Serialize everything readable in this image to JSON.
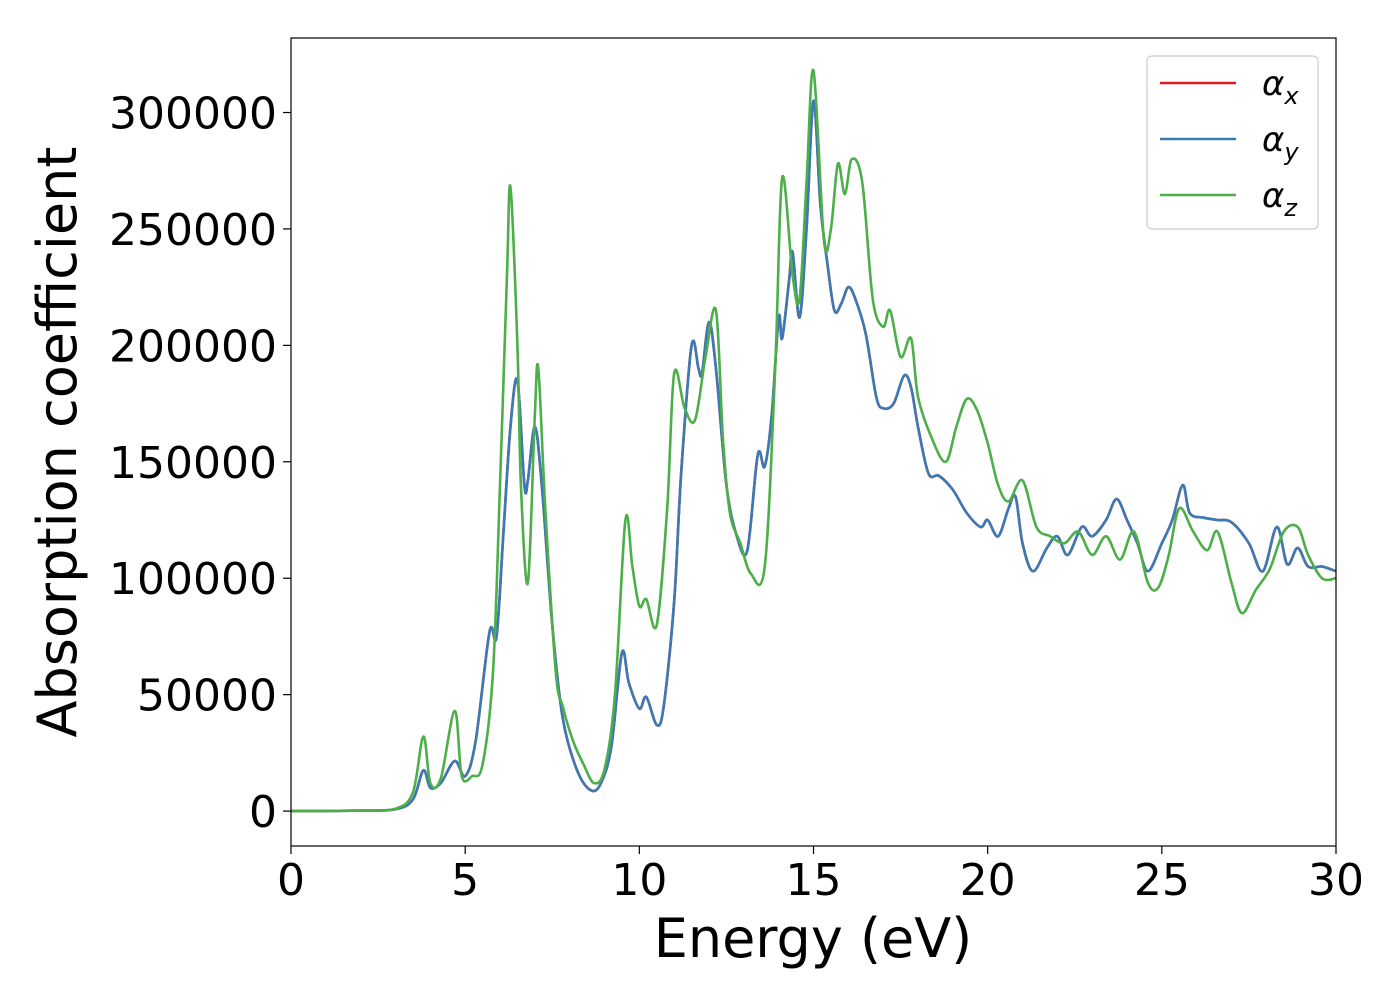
{
  "chart_data": {
    "type": "line",
    "title": "",
    "xlabel": "Energy (eV)",
    "ylabel": "Absorption coefficient",
    "xlim": [
      0,
      30
    ],
    "ylim": [
      -15000,
      332000
    ],
    "xticks": [
      0,
      5,
      10,
      15,
      20,
      25,
      30
    ],
    "yticks": [
      0,
      50000,
      100000,
      150000,
      200000,
      250000,
      300000
    ],
    "xtick_labels": [
      "0",
      "5",
      "10",
      "15",
      "20",
      "25",
      "30"
    ],
    "ytick_labels": [
      "0",
      "50000",
      "100000",
      "150000",
      "200000",
      "250000",
      "300000"
    ],
    "grid": false,
    "legend_position": "top-right",
    "series": [
      {
        "name": "αx",
        "legend_base": "α",
        "legend_sub": "x",
        "color": "#e41a1c",
        "points": [
          [
            0,
            0
          ],
          [
            2,
            200
          ],
          [
            3,
            800
          ],
          [
            3.5,
            5000
          ],
          [
            3.8,
            17500
          ],
          [
            4.0,
            10000
          ],
          [
            4.3,
            12000
          ],
          [
            4.7,
            21500
          ],
          [
            5.0,
            15000
          ],
          [
            5.3,
            30000
          ],
          [
            5.7,
            77000
          ],
          [
            5.9,
            75000
          ],
          [
            6.1,
            120000
          ],
          [
            6.3,
            165000
          ],
          [
            6.5,
            185000
          ],
          [
            6.7,
            140000
          ],
          [
            6.8,
            142000
          ],
          [
            7.0,
            165000
          ],
          [
            7.2,
            140000
          ],
          [
            7.5,
            80000
          ],
          [
            7.8,
            40000
          ],
          [
            8.2,
            18000
          ],
          [
            8.6,
            9000
          ],
          [
            8.9,
            12000
          ],
          [
            9.2,
            28000
          ],
          [
            9.5,
            68000
          ],
          [
            9.7,
            55000
          ],
          [
            10.0,
            44000
          ],
          [
            10.2,
            49000
          ],
          [
            10.5,
            37000
          ],
          [
            10.7,
            45000
          ],
          [
            11.0,
            90000
          ],
          [
            11.2,
            145000
          ],
          [
            11.5,
            200000
          ],
          [
            11.7,
            190000
          ],
          [
            11.8,
            188000
          ],
          [
            12.0,
            210000
          ],
          [
            12.2,
            190000
          ],
          [
            12.5,
            140000
          ],
          [
            12.8,
            118000
          ],
          [
            13.1,
            112000
          ],
          [
            13.4,
            153000
          ],
          [
            13.6,
            148000
          ],
          [
            13.8,
            170000
          ],
          [
            14.0,
            212000
          ],
          [
            14.1,
            203000
          ],
          [
            14.3,
            228000
          ],
          [
            14.4,
            240000
          ],
          [
            14.6,
            212000
          ],
          [
            14.8,
            250000
          ],
          [
            15.0,
            305000
          ],
          [
            15.2,
            260000
          ],
          [
            15.4,
            235000
          ],
          [
            15.6,
            215000
          ],
          [
            15.8,
            218000
          ],
          [
            16.0,
            225000
          ],
          [
            16.2,
            220000
          ],
          [
            16.5,
            205000
          ],
          [
            16.8,
            178000
          ],
          [
            17.0,
            173000
          ],
          [
            17.3,
            175000
          ],
          [
            17.6,
            187000
          ],
          [
            17.8,
            182000
          ],
          [
            18.0,
            165000
          ],
          [
            18.3,
            145000
          ],
          [
            18.6,
            144000
          ],
          [
            19.0,
            138000
          ],
          [
            19.4,
            128000
          ],
          [
            19.8,
            122000
          ],
          [
            20.0,
            125000
          ],
          [
            20.3,
            118000
          ],
          [
            20.6,
            130000
          ],
          [
            20.8,
            135000
          ],
          [
            21.0,
            115000
          ],
          [
            21.3,
            103000
          ],
          [
            21.7,
            113000
          ],
          [
            22.0,
            118000
          ],
          [
            22.3,
            110000
          ],
          [
            22.7,
            122000
          ],
          [
            23.0,
            118000
          ],
          [
            23.4,
            125000
          ],
          [
            23.7,
            134000
          ],
          [
            24.0,
            125000
          ],
          [
            24.3,
            115000
          ],
          [
            24.6,
            103000
          ],
          [
            25.0,
            115000
          ],
          [
            25.3,
            125000
          ],
          [
            25.6,
            140000
          ],
          [
            25.8,
            128000
          ],
          [
            26.2,
            126000
          ],
          [
            26.6,
            125000
          ],
          [
            27.0,
            124000
          ],
          [
            27.5,
            115000
          ],
          [
            27.9,
            103000
          ],
          [
            28.3,
            122000
          ],
          [
            28.6,
            106000
          ],
          [
            28.9,
            113000
          ],
          [
            29.2,
            105000
          ],
          [
            29.6,
            105000
          ],
          [
            30.0,
            103000
          ]
        ]
      },
      {
        "name": "αy",
        "legend_base": "α",
        "legend_sub": "y",
        "color": "#3a7ab5",
        "points": [
          [
            0,
            0
          ],
          [
            2,
            200
          ],
          [
            3,
            800
          ],
          [
            3.5,
            5000
          ],
          [
            3.8,
            17500
          ],
          [
            4.0,
            10000
          ],
          [
            4.3,
            12000
          ],
          [
            4.7,
            21500
          ],
          [
            5.0,
            15000
          ],
          [
            5.3,
            30000
          ],
          [
            5.7,
            77000
          ],
          [
            5.9,
            75000
          ],
          [
            6.1,
            120000
          ],
          [
            6.3,
            165000
          ],
          [
            6.5,
            185000
          ],
          [
            6.7,
            140000
          ],
          [
            6.8,
            142000
          ],
          [
            7.0,
            165000
          ],
          [
            7.2,
            140000
          ],
          [
            7.5,
            80000
          ],
          [
            7.8,
            40000
          ],
          [
            8.2,
            18000
          ],
          [
            8.6,
            9000
          ],
          [
            8.9,
            12000
          ],
          [
            9.2,
            28000
          ],
          [
            9.5,
            68000
          ],
          [
            9.7,
            55000
          ],
          [
            10.0,
            44000
          ],
          [
            10.2,
            49000
          ],
          [
            10.5,
            37000
          ],
          [
            10.7,
            45000
          ],
          [
            11.0,
            90000
          ],
          [
            11.2,
            145000
          ],
          [
            11.5,
            200000
          ],
          [
            11.7,
            190000
          ],
          [
            11.8,
            188000
          ],
          [
            12.0,
            210000
          ],
          [
            12.2,
            190000
          ],
          [
            12.5,
            140000
          ],
          [
            12.8,
            118000
          ],
          [
            13.1,
            112000
          ],
          [
            13.4,
            153000
          ],
          [
            13.6,
            148000
          ],
          [
            13.8,
            170000
          ],
          [
            14.0,
            212000
          ],
          [
            14.1,
            203000
          ],
          [
            14.3,
            228000
          ],
          [
            14.4,
            240000
          ],
          [
            14.6,
            212000
          ],
          [
            14.8,
            250000
          ],
          [
            15.0,
            305000
          ],
          [
            15.2,
            260000
          ],
          [
            15.4,
            235000
          ],
          [
            15.6,
            215000
          ],
          [
            15.8,
            218000
          ],
          [
            16.0,
            225000
          ],
          [
            16.2,
            220000
          ],
          [
            16.5,
            205000
          ],
          [
            16.8,
            178000
          ],
          [
            17.0,
            173000
          ],
          [
            17.3,
            175000
          ],
          [
            17.6,
            187000
          ],
          [
            17.8,
            182000
          ],
          [
            18.0,
            165000
          ],
          [
            18.3,
            145000
          ],
          [
            18.6,
            144000
          ],
          [
            19.0,
            138000
          ],
          [
            19.4,
            128000
          ],
          [
            19.8,
            122000
          ],
          [
            20.0,
            125000
          ],
          [
            20.3,
            118000
          ],
          [
            20.6,
            130000
          ],
          [
            20.8,
            135000
          ],
          [
            21.0,
            115000
          ],
          [
            21.3,
            103000
          ],
          [
            21.7,
            113000
          ],
          [
            22.0,
            118000
          ],
          [
            22.3,
            110000
          ],
          [
            22.7,
            122000
          ],
          [
            23.0,
            118000
          ],
          [
            23.4,
            125000
          ],
          [
            23.7,
            134000
          ],
          [
            24.0,
            125000
          ],
          [
            24.3,
            115000
          ],
          [
            24.6,
            103000
          ],
          [
            25.0,
            115000
          ],
          [
            25.3,
            125000
          ],
          [
            25.6,
            140000
          ],
          [
            25.8,
            128000
          ],
          [
            26.2,
            126000
          ],
          [
            26.6,
            125000
          ],
          [
            27.0,
            124000
          ],
          [
            27.5,
            115000
          ],
          [
            27.9,
            103000
          ],
          [
            28.3,
            122000
          ],
          [
            28.6,
            106000
          ],
          [
            28.9,
            113000
          ],
          [
            29.2,
            105000
          ],
          [
            29.6,
            105000
          ],
          [
            30.0,
            103000
          ]
        ]
      },
      {
        "name": "αz",
        "legend_base": "α",
        "legend_sub": "z",
        "color": "#4daf4a",
        "points": [
          [
            0,
            0
          ],
          [
            2,
            200
          ],
          [
            3,
            1000
          ],
          [
            3.5,
            8000
          ],
          [
            3.8,
            32000
          ],
          [
            4.0,
            12000
          ],
          [
            4.3,
            14000
          ],
          [
            4.7,
            43000
          ],
          [
            4.9,
            15000
          ],
          [
            5.2,
            15000
          ],
          [
            5.5,
            20000
          ],
          [
            5.8,
            60000
          ],
          [
            6.0,
            140000
          ],
          [
            6.2,
            230000
          ],
          [
            6.3,
            268000
          ],
          [
            6.5,
            200000
          ],
          [
            6.6,
            140000
          ],
          [
            6.8,
            98000
          ],
          [
            7.0,
            170000
          ],
          [
            7.1,
            190000
          ],
          [
            7.3,
            130000
          ],
          [
            7.6,
            60000
          ],
          [
            7.8,
            45000
          ],
          [
            8.1,
            30000
          ],
          [
            8.4,
            20000
          ],
          [
            8.7,
            12000
          ],
          [
            9.0,
            18000
          ],
          [
            9.3,
            50000
          ],
          [
            9.6,
            125000
          ],
          [
            9.8,
            105000
          ],
          [
            10.0,
            88000
          ],
          [
            10.2,
            91000
          ],
          [
            10.5,
            80000
          ],
          [
            10.8,
            130000
          ],
          [
            11.0,
            188000
          ],
          [
            11.3,
            173000
          ],
          [
            11.6,
            168000
          ],
          [
            11.9,
            195000
          ],
          [
            12.2,
            215000
          ],
          [
            12.4,
            160000
          ],
          [
            12.6,
            128000
          ],
          [
            12.9,
            115000
          ],
          [
            13.2,
            102000
          ],
          [
            13.6,
            105000
          ],
          [
            13.9,
            190000
          ],
          [
            14.1,
            272000
          ],
          [
            14.4,
            230000
          ],
          [
            14.6,
            220000
          ],
          [
            14.8,
            270000
          ],
          [
            15.0,
            318000
          ],
          [
            15.3,
            245000
          ],
          [
            15.5,
            250000
          ],
          [
            15.7,
            278000
          ],
          [
            15.9,
            265000
          ],
          [
            16.1,
            280000
          ],
          [
            16.4,
            270000
          ],
          [
            16.7,
            220000
          ],
          [
            17.0,
            208000
          ],
          [
            17.2,
            215000
          ],
          [
            17.5,
            195000
          ],
          [
            17.8,
            203000
          ],
          [
            18.0,
            178000
          ],
          [
            18.4,
            160000
          ],
          [
            18.8,
            150000
          ],
          [
            19.1,
            165000
          ],
          [
            19.4,
            177000
          ],
          [
            19.7,
            172000
          ],
          [
            20.0,
            158000
          ],
          [
            20.3,
            140000
          ],
          [
            20.6,
            133000
          ],
          [
            21.0,
            142000
          ],
          [
            21.4,
            122000
          ],
          [
            21.8,
            118000
          ],
          [
            22.2,
            115000
          ],
          [
            22.6,
            120000
          ],
          [
            23.0,
            110000
          ],
          [
            23.4,
            118000
          ],
          [
            23.8,
            108000
          ],
          [
            24.2,
            120000
          ],
          [
            24.6,
            98000
          ],
          [
            24.9,
            96000
          ],
          [
            25.2,
            110000
          ],
          [
            25.5,
            130000
          ],
          [
            25.9,
            120000
          ],
          [
            26.3,
            112000
          ],
          [
            26.6,
            120000
          ],
          [
            27.0,
            98000
          ],
          [
            27.3,
            85000
          ],
          [
            27.7,
            95000
          ],
          [
            28.1,
            104000
          ],
          [
            28.5,
            120000
          ],
          [
            28.9,
            122000
          ],
          [
            29.2,
            110000
          ],
          [
            29.6,
            100000
          ],
          [
            30.0,
            100000
          ]
        ]
      }
    ]
  }
}
